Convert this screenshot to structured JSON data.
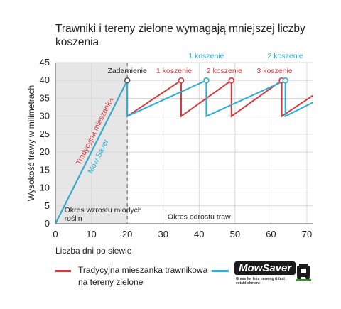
{
  "chart_data": {
    "type": "line",
    "title": "Trawniki i tereny zielone wymagają mniejszej liczby koszenia",
    "xlabel": "Liczba dni po siewie",
    "ylabel": "Wysokość trawy w milimetrach",
    "xlim": [
      0,
      70
    ],
    "ylim": [
      0,
      45
    ],
    "xticks": [
      "0",
      "10",
      "20",
      "30",
      "40",
      "50",
      "60",
      "70"
    ],
    "yticks": [
      "0",
      "5",
      "10",
      "15",
      "20",
      "25",
      "30",
      "35",
      "40",
      "45"
    ],
    "grid": true,
    "establishment_day": 20,
    "series": [
      {
        "name": "Tradycyjna mieszanka trawnikowa na tereny zielone",
        "color": "#d83a3f",
        "x": [
          0,
          20,
          20,
          35,
          35,
          49,
          49,
          63,
          63,
          72
        ],
        "y": [
          0,
          40,
          30,
          40,
          30,
          40,
          30,
          40,
          30,
          36
        ]
      },
      {
        "name": "Mow Saver",
        "color": "#2ab0d8",
        "x": [
          0,
          20,
          20,
          42,
          42,
          64,
          64,
          72
        ],
        "y": [
          0,
          40,
          30,
          40,
          30,
          40,
          30,
          34
        ]
      }
    ],
    "annotations": [
      {
        "text": "Zadarnienie",
        "color": "#222222",
        "x": 20,
        "y": 40,
        "marker_color": "#555555"
      },
      {
        "text": "1 koszenie",
        "color": "#d83a3f",
        "x": 35,
        "y": 40,
        "marker_color": "#d83a3f"
      },
      {
        "text": "2 koszenie",
        "color": "#d83a3f",
        "x": 49,
        "y": 40,
        "marker_color": "#d83a3f"
      },
      {
        "text": "3 koszenie",
        "color": "#d83a3f",
        "x": 63,
        "y": 40,
        "marker_color": "#d83a3f"
      },
      {
        "text": "1 koszenie",
        "color": "#2ab0d8",
        "x": 42,
        "y": 40,
        "marker_color": "#2ab0d8"
      },
      {
        "text": "2 koszenie",
        "color": "#2ab0d8",
        "x": 64,
        "y": 40,
        "marker_color": "#2ab0d8"
      }
    ],
    "line_labels": {
      "red": "Tradycyjna mieszanka",
      "blue": "Mow Saver"
    },
    "regions": {
      "establishment": "Okres wzrostu młodych roślin",
      "establishment_line1": "Okres wzrostu młodych",
      "establishment_line2": "roślin",
      "regrowth": "Okres odrostu traw"
    },
    "shaded_color": "#e6e6e6"
  },
  "legend": {
    "red_label": "Tradycyjna mieszanka trawnikowa na tereny zielone",
    "red_label_line1": "Tradycyjna mieszanka trawnikowa",
    "red_label_line2": "na tereny zielone",
    "red_color": "#d83a3f",
    "blue_color": "#2ab0d8",
    "logo_text": "MowSaver",
    "logo_tagline": "Grass for less mowing & fast establishment"
  }
}
